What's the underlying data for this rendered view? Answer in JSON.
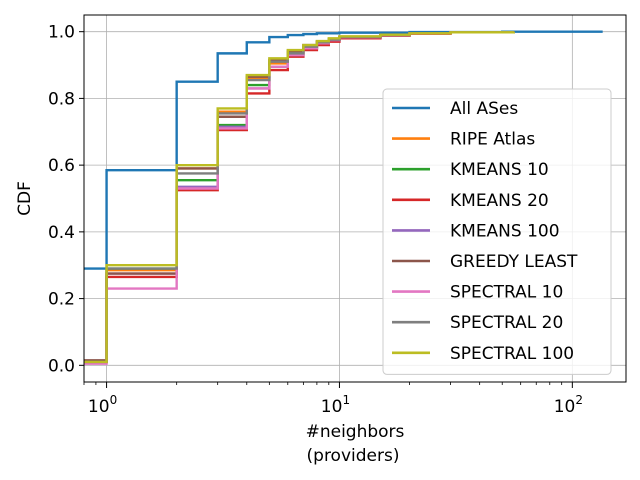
{
  "chart_data": {
    "type": "line",
    "step": true,
    "xscale": "log",
    "xlim": [
      0.8,
      170
    ],
    "ylim": [
      -0.05,
      1.05
    ],
    "xlabel": "#neighbors",
    "xlabel_line2": "(providers)",
    "ylabel": "CDF",
    "xticks": [
      {
        "value": 1,
        "base": "10",
        "exp": "0"
      },
      {
        "value": 10,
        "base": "10",
        "exp": "1"
      },
      {
        "value": 100,
        "base": "10",
        "exp": "2"
      }
    ],
    "yticks": [
      "0.0",
      "0.2",
      "0.4",
      "0.6",
      "0.8",
      "1.0"
    ],
    "grid": true,
    "legend_position": "lower-right",
    "series": [
      {
        "name": "All ASes",
        "color": "#1f77b4",
        "x": [
          0.8,
          1,
          2,
          3,
          4,
          5,
          6,
          7,
          8,
          10,
          20,
          50,
          135
        ],
        "y": [
          0.29,
          0.585,
          0.85,
          0.935,
          0.968,
          0.984,
          0.99,
          0.993,
          0.995,
          0.997,
          0.999,
          1.0,
          1.0
        ]
      },
      {
        "name": "RIPE Atlas",
        "color": "#ff7f0e",
        "x": [
          0.8,
          1,
          2,
          3,
          4,
          5,
          6,
          7,
          8,
          9,
          10,
          15,
          20,
          30,
          56
        ],
        "y": [
          0.01,
          0.285,
          0.59,
          0.76,
          0.86,
          0.905,
          0.935,
          0.955,
          0.968,
          0.975,
          0.985,
          0.99,
          0.995,
          0.998,
          1.0
        ]
      },
      {
        "name": "KMEANS 10",
        "color": "#2ca02c",
        "x": [
          0.8,
          1,
          2,
          3,
          4,
          5,
          6,
          7,
          8,
          9,
          10,
          15,
          20,
          30,
          56
        ],
        "y": [
          0.01,
          0.29,
          0.555,
          0.72,
          0.84,
          0.895,
          0.93,
          0.95,
          0.965,
          0.975,
          0.983,
          0.99,
          0.995,
          0.998,
          1.0
        ]
      },
      {
        "name": "KMEANS 20",
        "color": "#d62728",
        "x": [
          0.8,
          1,
          2,
          3,
          4,
          5,
          6,
          7,
          8,
          9,
          10,
          15,
          20,
          30,
          56
        ],
        "y": [
          0.01,
          0.265,
          0.525,
          0.705,
          0.815,
          0.885,
          0.925,
          0.945,
          0.96,
          0.97,
          0.98,
          0.988,
          0.994,
          0.998,
          1.0
        ]
      },
      {
        "name": "KMEANS 100",
        "color": "#9467bd",
        "x": [
          0.8,
          1,
          2,
          3,
          4,
          5,
          6,
          7,
          8,
          9,
          10,
          15,
          20,
          30,
          56
        ],
        "y": [
          0.01,
          0.275,
          0.535,
          0.715,
          0.83,
          0.895,
          0.93,
          0.95,
          0.965,
          0.975,
          0.983,
          0.99,
          0.995,
          0.998,
          1.0
        ]
      },
      {
        "name": "GREEDY LEAST",
        "color": "#8c564b",
        "x": [
          0.8,
          1,
          2,
          3,
          4,
          5,
          6,
          7,
          8,
          9,
          10,
          15,
          20,
          30,
          56
        ],
        "y": [
          0.015,
          0.275,
          0.59,
          0.745,
          0.865,
          0.915,
          0.94,
          0.96,
          0.97,
          0.978,
          0.985,
          0.99,
          0.995,
          0.998,
          1.0
        ]
      },
      {
        "name": "SPECTRAL 10",
        "color": "#e377c2",
        "x": [
          0.8,
          1,
          2,
          3,
          4,
          5,
          6,
          7,
          8,
          9,
          10,
          15,
          20,
          30,
          56
        ],
        "y": [
          0.005,
          0.23,
          0.53,
          0.71,
          0.83,
          0.895,
          0.93,
          0.95,
          0.965,
          0.975,
          0.983,
          0.99,
          0.995,
          0.998,
          1.0
        ]
      },
      {
        "name": "SPECTRAL 20",
        "color": "#7f7f7f",
        "x": [
          0.8,
          1,
          2,
          3,
          4,
          5,
          6,
          7,
          8,
          9,
          10,
          15,
          20,
          30,
          56
        ],
        "y": [
          0.01,
          0.29,
          0.575,
          0.755,
          0.855,
          0.91,
          0.935,
          0.955,
          0.968,
          0.976,
          0.984,
          0.99,
          0.995,
          0.998,
          1.0
        ]
      },
      {
        "name": "SPECTRAL 100",
        "color": "#bcbd22",
        "x": [
          0.8,
          1,
          2,
          3,
          4,
          5,
          6,
          7,
          8,
          9,
          10,
          15,
          20,
          30,
          56
        ],
        "y": [
          0.01,
          0.3,
          0.6,
          0.77,
          0.87,
          0.92,
          0.945,
          0.96,
          0.972,
          0.98,
          0.986,
          0.991,
          0.995,
          0.998,
          1.0
        ]
      }
    ]
  }
}
